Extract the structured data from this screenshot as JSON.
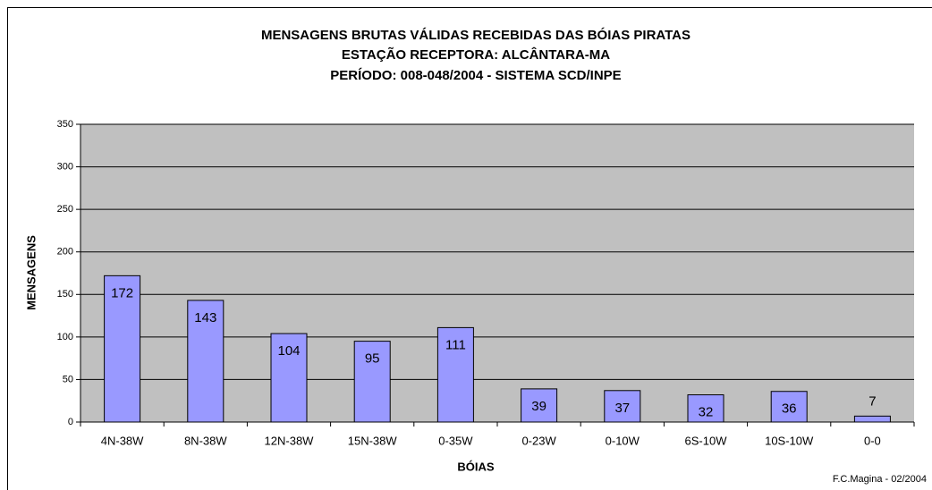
{
  "chart_data": {
    "type": "bar",
    "title": "MENSAGENS BRUTAS VÁLIDAS RECEBIDAS DAS BÓIAS PIRATAS",
    "subtitle": [
      "ESTAÇÃO RECEPTORA:  ALCÂNTARA-MA",
      "PERÍODO: 008-048/2004  -  SISTEMA SCD/INPE"
    ],
    "x_label": "BÓIAS",
    "y_label": "MENSAGENS",
    "annotation": "F.C.Magina - 02/2004",
    "categories": [
      "4N-38W",
      "8N-38W",
      "12N-38W",
      "15N-38W",
      "0-35W",
      "0-23W",
      "0-10W",
      "6S-10W",
      "10S-10W",
      "0-0"
    ],
    "values": [
      172,
      143,
      104,
      95,
      111,
      39,
      37,
      32,
      36,
      7
    ],
    "color": "#9999ff",
    "ylim": [
      0,
      350
    ],
    "yticks": [
      0,
      50,
      100,
      150,
      200,
      250,
      300,
      350
    ],
    "grid": true
  }
}
